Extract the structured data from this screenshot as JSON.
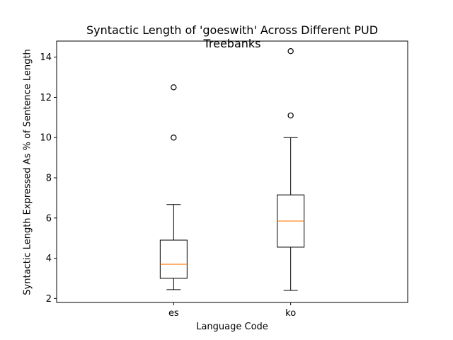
{
  "chart_data": {
    "type": "box",
    "title": "Syntactic Length of 'goeswith' Across Different PUD Treebanks",
    "xlabel": "Language Code",
    "ylabel": "Syntactic Length Expressed As % of Sentence Length",
    "categories": [
      "es",
      "ko"
    ],
    "ylim": [
      1.8,
      14.8
    ],
    "yticks": [
      2,
      4,
      6,
      8,
      10,
      12,
      14
    ],
    "grid": false,
    "boxes": [
      {
        "category": "es",
        "whisker_low": 2.44,
        "q1": 3.0,
        "median": 3.7,
        "q3": 4.9,
        "whisker_high": 6.67,
        "outliers": [
          10.0,
          12.5
        ]
      },
      {
        "category": "ko",
        "whisker_low": 2.4,
        "q1": 4.55,
        "median": 5.85,
        "q3": 7.15,
        "whisker_high": 10.0,
        "outliers": [
          11.1,
          14.3
        ]
      }
    ],
    "colors": {
      "median": "#ff7f0e",
      "box": "#000000"
    }
  }
}
